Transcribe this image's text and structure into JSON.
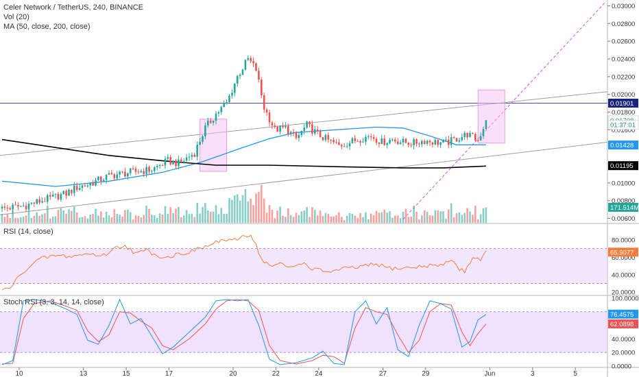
{
  "header": {
    "symbol": "Celer Network / TetherUS, 240, BINANCE",
    "vol_label": "Vol (20)",
    "ma_label": "MA (50, close, 200, close)"
  },
  "rsi_panel": {
    "label": "RSI (14, close)"
  },
  "stoch_panel": {
    "label": "Stoch RSI (3, 3, 14, 14, close)"
  },
  "colors": {
    "up": "#26a69a",
    "down": "#ef5350",
    "ma50": "#2196f3",
    "ma200": "#000000",
    "resistance": "#3f51b5",
    "rsi": "#f57c3a",
    "stoch_k": "#2196f3",
    "stoch_d": "#ef5350",
    "band": "#e4c8ff",
    "box": "#f4c0f0",
    "trend": "#9e9e9e",
    "projection": "#e040fb"
  },
  "chart_data": [
    {
      "type": "candlestick",
      "title": "Celer Network / TetherUS, 240, BINANCE",
      "x_tick_labels": [
        "10",
        "13",
        "15",
        "17",
        "20",
        "22",
        "24",
        "27",
        "29",
        "Jun",
        "3",
        "5"
      ],
      "y_tick_labels": [
        "0.03000",
        "0.02800",
        "0.02600",
        "0.02400",
        "0.02200",
        "0.02000",
        "0.01800",
        "0.01600",
        "0.01000",
        "0.00800",
        "0.00600"
      ],
      "ylim": [
        0.0055,
        0.0305
      ],
      "price_labels": [
        {
          "value": 0.01901,
          "text": "0.01901",
          "kind": "resistance"
        },
        {
          "value": 0.01708,
          "text": "0.01708",
          "kind": "last"
        },
        {
          "value": 0.01655,
          "text": "01:37:01",
          "kind": "countdown"
        },
        {
          "value": 0.01428,
          "text": "0.01428",
          "kind": "ma50"
        },
        {
          "value": 0.01195,
          "text": "0.01195",
          "kind": "ma200"
        }
      ],
      "volume_label": "171.514M",
      "resistance_level": 0.01901,
      "anchors": [
        [
          0,
          0.0071
        ],
        [
          8,
          0.0074
        ],
        [
          16,
          0.0081
        ],
        [
          24,
          0.0088
        ],
        [
          28,
          0.0095
        ],
        [
          32,
          0.0098
        ],
        [
          40,
          0.0108
        ],
        [
          48,
          0.0112
        ],
        [
          56,
          0.0115
        ],
        [
          62,
          0.0125
        ],
        [
          66,
          0.0122
        ],
        [
          72,
          0.0134
        ],
        [
          76,
          0.0162
        ],
        [
          80,
          0.0178
        ],
        [
          84,
          0.019
        ],
        [
          88,
          0.022
        ],
        [
          92,
          0.024
        ],
        [
          95,
          0.0228
        ],
        [
          98,
          0.0185
        ],
        [
          102,
          0.016
        ],
        [
          106,
          0.0162
        ],
        [
          110,
          0.015
        ],
        [
          114,
          0.0165
        ],
        [
          118,
          0.0155
        ],
        [
          122,
          0.0148
        ],
        [
          126,
          0.0142
        ],
        [
          130,
          0.0146
        ],
        [
          134,
          0.015
        ],
        [
          138,
          0.0153
        ],
        [
          142,
          0.0146
        ],
        [
          146,
          0.0149
        ],
        [
          150,
          0.0146
        ],
        [
          154,
          0.0145
        ],
        [
          158,
          0.0148
        ],
        [
          162,
          0.0146
        ],
        [
          166,
          0.0145
        ],
        [
          170,
          0.015
        ],
        [
          174,
          0.0155
        ],
        [
          178,
          0.0148
        ],
        [
          181,
          0.017
        ]
      ],
      "ma50": [
        [
          0,
          0.0102
        ],
        [
          20,
          0.0096
        ],
        [
          40,
          0.0102
        ],
        [
          60,
          0.0112
        ],
        [
          75,
          0.0124
        ],
        [
          90,
          0.014
        ],
        [
          100,
          0.015
        ],
        [
          110,
          0.0157
        ],
        [
          120,
          0.0159
        ],
        [
          130,
          0.0161
        ],
        [
          140,
          0.0163
        ],
        [
          150,
          0.0162
        ],
        [
          160,
          0.0153
        ],
        [
          170,
          0.0143
        ],
        [
          181,
          0.0143
        ]
      ],
      "ma200": [
        [
          0,
          0.0149
        ],
        [
          20,
          0.014
        ],
        [
          40,
          0.0131
        ],
        [
          60,
          0.0125
        ],
        [
          80,
          0.012
        ],
        [
          100,
          0.012
        ],
        [
          130,
          0.0118
        ],
        [
          150,
          0.0117
        ],
        [
          165,
          0.0117
        ],
        [
          181,
          0.0119
        ]
      ]
    },
    {
      "type": "line",
      "title": "RSI (14, close)",
      "y_tick_labels": [
        "80.0000",
        "60.0000",
        "40.0000",
        "20.0000"
      ],
      "ylim": [
        17,
        98
      ],
      "band": [
        30,
        70
      ],
      "last_value_label": "65.9077",
      "anchors": [
        [
          0,
          22
        ],
        [
          3,
          25
        ],
        [
          8,
          44
        ],
        [
          14,
          58
        ],
        [
          20,
          62
        ],
        [
          26,
          61
        ],
        [
          32,
          64
        ],
        [
          38,
          62
        ],
        [
          42,
          70
        ],
        [
          46,
          74
        ],
        [
          50,
          64
        ],
        [
          54,
          68
        ],
        [
          58,
          62
        ],
        [
          62,
          60
        ],
        [
          66,
          64
        ],
        [
          70,
          66
        ],
        [
          74,
          70
        ],
        [
          78,
          74
        ],
        [
          82,
          80
        ],
        [
          86,
          78
        ],
        [
          90,
          84
        ],
        [
          93,
          86
        ],
        [
          95,
          74
        ],
        [
          97,
          58
        ],
        [
          100,
          50
        ],
        [
          104,
          52
        ],
        [
          108,
          48
        ],
        [
          112,
          54
        ],
        [
          116,
          47
        ],
        [
          120,
          44
        ],
        [
          124,
          44
        ],
        [
          128,
          47
        ],
        [
          132,
          48
        ],
        [
          136,
          50
        ],
        [
          140,
          52
        ],
        [
          144,
          48
        ],
        [
          148,
          47
        ],
        [
          152,
          48
        ],
        [
          156,
          49
        ],
        [
          160,
          51
        ],
        [
          164,
          50
        ],
        [
          168,
          58
        ],
        [
          171,
          46
        ],
        [
          173,
          44
        ],
        [
          176,
          60
        ],
        [
          179,
          58
        ],
        [
          181,
          66
        ]
      ]
    },
    {
      "type": "line",
      "title": "Stoch RSI (3, 3, 14, 14, close)",
      "y_tick_labels": [
        "100.0000",
        "80.0000",
        "60.0000",
        "40.0000",
        "20.0000",
        "0.0000"
      ],
      "ylim": [
        -2,
        103
      ],
      "band": [
        20,
        80
      ],
      "last_value_labels": [
        "76.4575",
        "62.0898"
      ],
      "k_anchors": [
        [
          0,
          2
        ],
        [
          4,
          8
        ],
        [
          8,
          96
        ],
        [
          12,
          98
        ],
        [
          18,
          94
        ],
        [
          24,
          84
        ],
        [
          28,
          76
        ],
        [
          32,
          38
        ],
        [
          36,
          32
        ],
        [
          40,
          60
        ],
        [
          44,
          98
        ],
        [
          48,
          62
        ],
        [
          52,
          70
        ],
        [
          56,
          44
        ],
        [
          60,
          18
        ],
        [
          64,
          28
        ],
        [
          70,
          50
        ],
        [
          76,
          72
        ],
        [
          80,
          96
        ],
        [
          84,
          98
        ],
        [
          88,
          96
        ],
        [
          92,
          98
        ],
        [
          96,
          60
        ],
        [
          100,
          10
        ],
        [
          104,
          2
        ],
        [
          110,
          5
        ],
        [
          116,
          12
        ],
        [
          120,
          22
        ],
        [
          124,
          4
        ],
        [
          128,
          2
        ],
        [
          132,
          80
        ],
        [
          136,
          96
        ],
        [
          140,
          62
        ],
        [
          144,
          86
        ],
        [
          148,
          24
        ],
        [
          152,
          14
        ],
        [
          156,
          60
        ],
        [
          160,
          96
        ],
        [
          164,
          92
        ],
        [
          168,
          84
        ],
        [
          172,
          28
        ],
        [
          175,
          36
        ],
        [
          178,
          68
        ],
        [
          181,
          76
        ]
      ],
      "d_anchors": [
        [
          0,
          3
        ],
        [
          4,
          4
        ],
        [
          8,
          70
        ],
        [
          12,
          92
        ],
        [
          18,
          96
        ],
        [
          24,
          88
        ],
        [
          28,
          82
        ],
        [
          32,
          52
        ],
        [
          36,
          36
        ],
        [
          40,
          46
        ],
        [
          44,
          80
        ],
        [
          48,
          78
        ],
        [
          52,
          66
        ],
        [
          56,
          56
        ],
        [
          60,
          30
        ],
        [
          64,
          24
        ],
        [
          70,
          40
        ],
        [
          76,
          62
        ],
        [
          80,
          84
        ],
        [
          84,
          96
        ],
        [
          88,
          98
        ],
        [
          92,
          96
        ],
        [
          96,
          82
        ],
        [
          100,
          30
        ],
        [
          104,
          8
        ],
        [
          110,
          3
        ],
        [
          116,
          8
        ],
        [
          120,
          16
        ],
        [
          124,
          14
        ],
        [
          128,
          4
        ],
        [
          132,
          56
        ],
        [
          136,
          86
        ],
        [
          140,
          80
        ],
        [
          144,
          76
        ],
        [
          148,
          46
        ],
        [
          152,
          20
        ],
        [
          156,
          38
        ],
        [
          160,
          80
        ],
        [
          164,
          92
        ],
        [
          168,
          90
        ],
        [
          172,
          50
        ],
        [
          175,
          30
        ],
        [
          178,
          48
        ],
        [
          181,
          62
        ]
      ]
    }
  ]
}
